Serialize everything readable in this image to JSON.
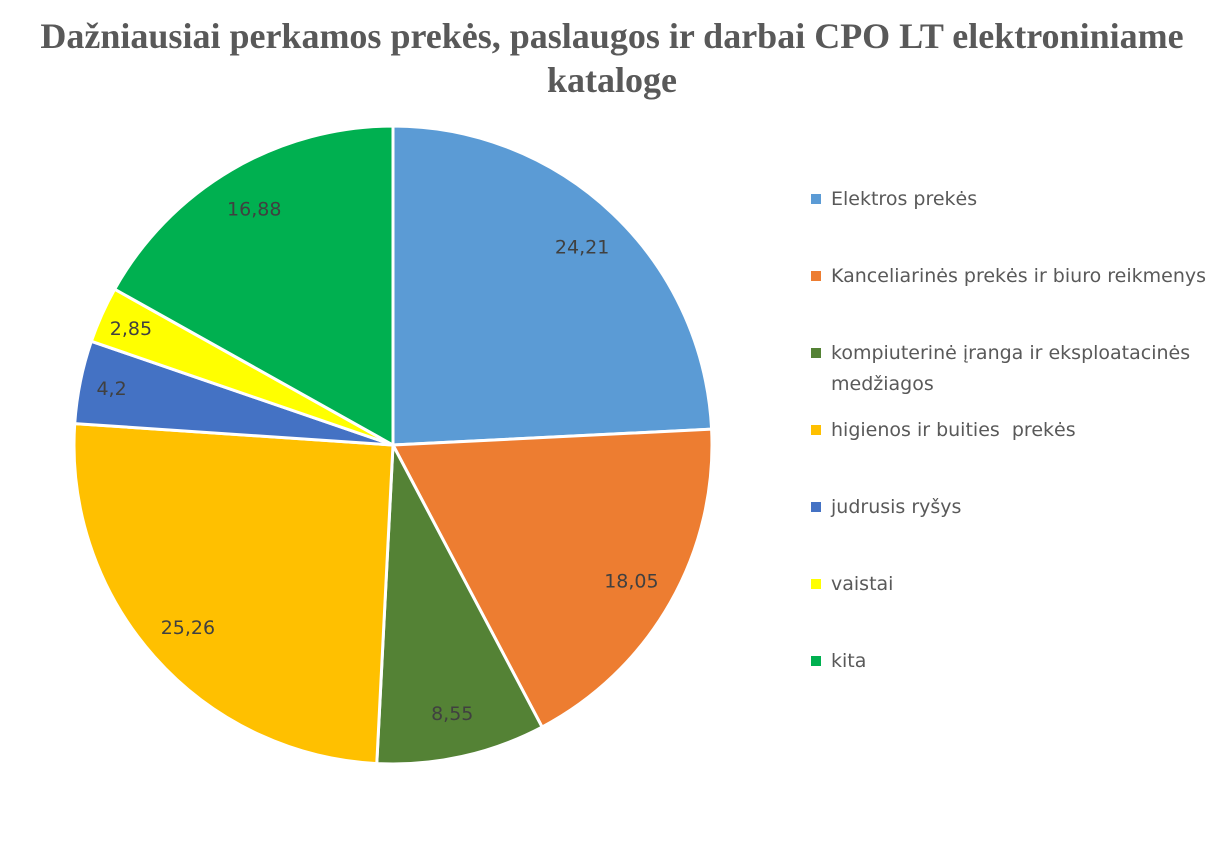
{
  "chart_data": {
    "type": "pie",
    "title": "Dažniausiai perkamos prekės, paslaugos ir darbai CPO LT elektroniniame kataloge",
    "categories": [
      "Elektros prekės",
      "Kanceliarinės prekės ir biuro reikmenys",
      "kompiuterinė įranga ir eksploatacinės medžiagos",
      "higienos ir buities  prekės",
      "judrusis ryšys",
      "vaistai",
      "kita"
    ],
    "values": [
      24.21,
      18.05,
      8.55,
      25.26,
      4.2,
      2.85,
      16.88
    ],
    "value_labels": [
      "24,21",
      "18,05",
      "8,55",
      "25,26",
      "4,2",
      "2,85",
      "16,88"
    ],
    "colors": [
      "#5B9BD5",
      "#ED7D31",
      "#548235",
      "#FFC000",
      "#4472C4",
      "#FFFF00",
      "#00B050"
    ],
    "legend_position": "right",
    "start_angle": "12 o'clock, clockwise"
  }
}
